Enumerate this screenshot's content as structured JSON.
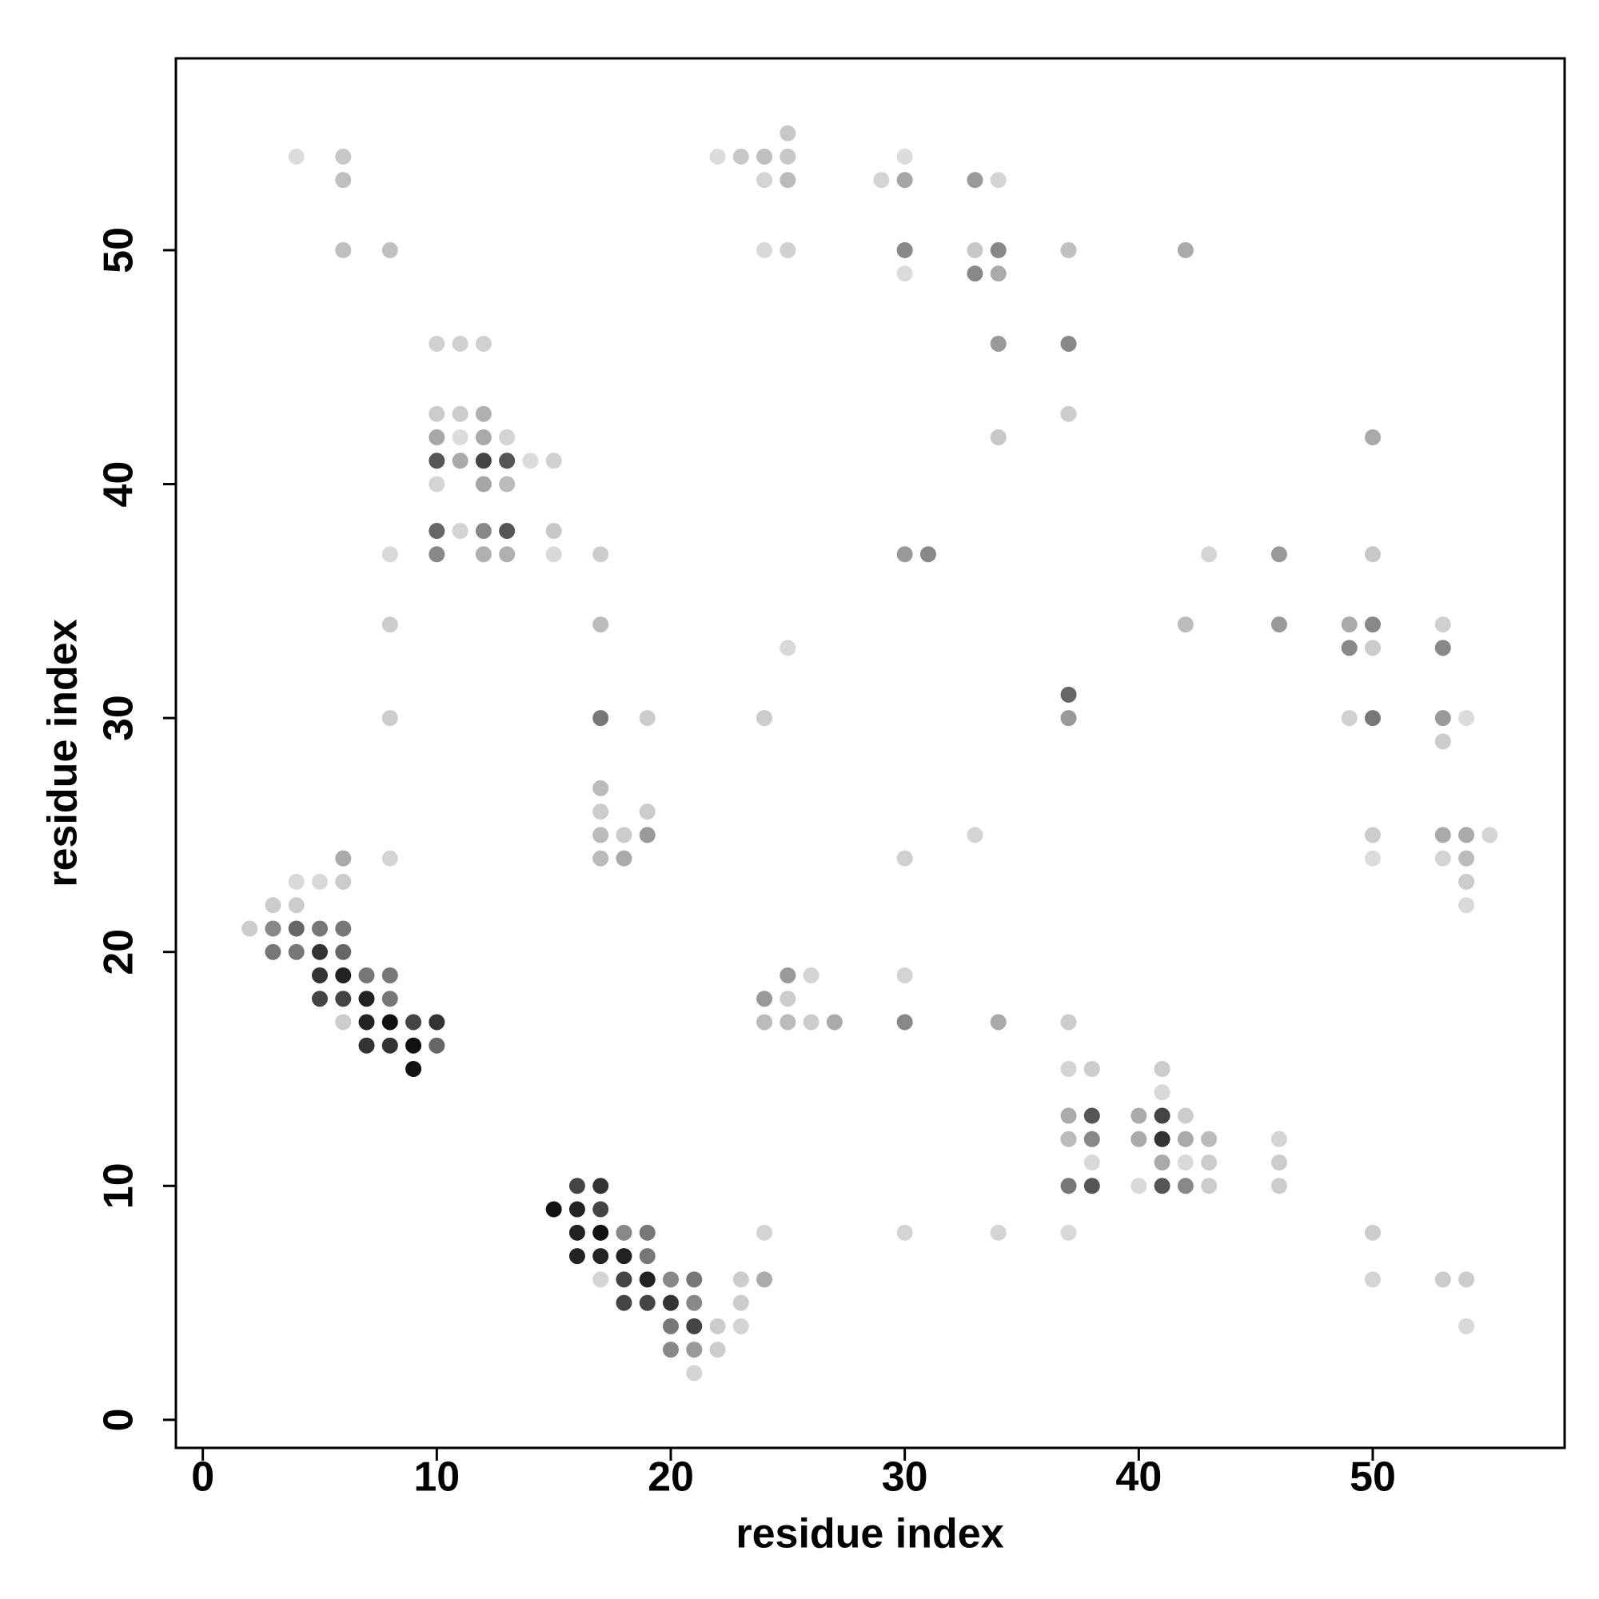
{
  "chart_data": {
    "type": "scatter",
    "x_label": "residue index",
    "y_label": "residue index",
    "xlim": [
      -1.15,
      58.2
    ],
    "ylim": [
      -1.2,
      58.2
    ],
    "xticks": [
      0,
      10,
      20,
      30,
      40,
      50
    ],
    "yticks": [
      0,
      10,
      20,
      30,
      40,
      50
    ],
    "x": [
      25,
      4,
      6,
      22,
      23,
      24,
      25,
      30,
      6,
      24,
      25,
      29,
      30,
      33,
      34,
      6,
      8,
      24,
      25,
      30,
      33,
      34,
      37,
      42,
      30,
      33,
      34,
      10,
      11,
      12,
      34,
      37,
      10,
      11,
      12,
      37,
      10,
      11,
      12,
      13,
      34,
      50,
      10,
      11,
      12,
      13,
      14,
      15,
      10,
      12,
      13,
      10,
      11,
      12,
      13,
      15,
      8,
      10,
      12,
      13,
      15,
      17,
      30,
      31,
      43,
      46,
      50,
      8,
      17,
      42,
      46,
      49,
      50,
      53,
      25,
      49,
      50,
      53,
      37,
      8,
      17,
      19,
      24,
      37,
      49,
      50,
      53,
      54,
      53,
      17,
      17,
      19,
      17,
      18,
      19,
      33,
      50,
      53,
      54,
      55,
      6,
      8,
      17,
      18,
      30,
      50,
      53,
      54,
      4,
      5,
      6,
      54,
      3,
      4,
      54,
      2,
      3,
      4,
      5,
      6,
      3,
      4,
      5,
      6,
      5,
      6,
      7,
      8,
      25,
      26,
      30,
      5,
      6,
      7,
      8,
      24,
      25,
      6,
      7,
      8,
      9,
      10,
      24,
      25,
      26,
      27,
      30,
      34,
      37,
      7,
      8,
      9,
      10,
      9,
      37,
      38,
      41,
      41,
      37,
      38,
      40,
      41,
      42,
      37,
      38,
      40,
      41,
      42,
      43,
      46,
      38,
      41,
      42,
      43,
      46,
      16,
      17,
      37,
      38,
      40,
      41,
      42,
      43,
      46,
      15,
      16,
      17,
      16,
      17,
      18,
      19,
      24,
      30,
      34,
      37,
      50,
      16,
      17,
      18,
      19,
      17,
      18,
      19,
      20,
      21,
      23,
      24,
      50,
      53,
      54,
      18,
      19,
      20,
      21,
      23,
      20,
      21,
      22,
      23,
      54,
      20,
      21,
      22,
      21
    ],
    "y": [
      55,
      54,
      54,
      54,
      54,
      54,
      54,
      54,
      53,
      53,
      53,
      53,
      53,
      53,
      53,
      50,
      50,
      50,
      50,
      50,
      50,
      50,
      50,
      50,
      49,
      49,
      49,
      46,
      46,
      46,
      46,
      46,
      43,
      43,
      43,
      43,
      42,
      42,
      42,
      42,
      42,
      42,
      41,
      41,
      41,
      41,
      41,
      41,
      40,
      40,
      40,
      38,
      38,
      38,
      38,
      38,
      37,
      37,
      37,
      37,
      37,
      37,
      37,
      37,
      37,
      37,
      37,
      34,
      34,
      34,
      34,
      34,
      34,
      34,
      33,
      33,
      33,
      33,
      31,
      30,
      30,
      30,
      30,
      30,
      30,
      30,
      30,
      30,
      29,
      27,
      26,
      26,
      25,
      25,
      25,
      25,
      25,
      25,
      25,
      25,
      24,
      24,
      24,
      24,
      24,
      24,
      24,
      24,
      23,
      23,
      23,
      23,
      22,
      22,
      22,
      21,
      21,
      21,
      21,
      21,
      20,
      20,
      20,
      20,
      19,
      19,
      19,
      19,
      19,
      19,
      19,
      18,
      18,
      18,
      18,
      18,
      18,
      17,
      17,
      17,
      17,
      17,
      17,
      17,
      17,
      17,
      17,
      17,
      17,
      16,
      16,
      16,
      16,
      15,
      15,
      15,
      15,
      14,
      13,
      13,
      13,
      13,
      13,
      12,
      12,
      12,
      12,
      12,
      12,
      12,
      11,
      11,
      11,
      11,
      11,
      10,
      10,
      10,
      10,
      10,
      10,
      10,
      10,
      10,
      9,
      9,
      9,
      8,
      8,
      8,
      8,
      8,
      8,
      8,
      8,
      8,
      7,
      7,
      7,
      7,
      6,
      6,
      6,
      6,
      6,
      6,
      6,
      6,
      6,
      6,
      5,
      5,
      5,
      5,
      5,
      4,
      4,
      4,
      4,
      4,
      3,
      3,
      3,
      2
    ],
    "colors": [
      "#c8c8c8",
      "#dcdcdc",
      "#c8c8c8",
      "#dcdcdc",
      "#c8c8c8",
      "#bfbfbf",
      "#c8c8c8",
      "#dcdcdc",
      "#bfbfbf",
      "#d4d4d4",
      "#bbbbbb",
      "#d4d4d4",
      "#a6a6a6",
      "#999999",
      "#d4d4d4",
      "#bfbfbf",
      "#c0c0c0",
      "#d9d9d9",
      "#d0d0d0",
      "#888888",
      "#c8c8c8",
      "#888888",
      "#c0c0c0",
      "#aaaaaa",
      "#dcdcdc",
      "#888888",
      "#aaaaaa",
      "#d0d0d0",
      "#d0d0d0",
      "#d0d0d0",
      "#999999",
      "#888888",
      "#cccccc",
      "#cccccc",
      "#b0b0b0",
      "#cccccc",
      "#a8a8a8",
      "#dcdcdc",
      "#aaaaaa",
      "#d4d4d4",
      "#c8c8c8",
      "#aaaaaa",
      "#555555",
      "#aaaaaa",
      "#444444",
      "#555555",
      "#dcdcdc",
      "#d0d0d0",
      "#d4d4d4",
      "#a6a6a6",
      "#bbbbbb",
      "#666666",
      "#d4d4d4",
      "#888888",
      "#555555",
      "#c8c8c8",
      "#d9d9d9",
      "#888888",
      "#b0b0b0",
      "#b0b0b0",
      "#d9d9d9",
      "#cccccc",
      "#999999",
      "#888888",
      "#d4d4d4",
      "#999999",
      "#c8c8c8",
      "#cccccc",
      "#bbbbbb",
      "#bbbbbb",
      "#999999",
      "#aaaaaa",
      "#888888",
      "#d0d0d0",
      "#d9d9d9",
      "#888888",
      "#cccccc",
      "#888888",
      "#666666",
      "#cccccc",
      "#777777",
      "#cccccc",
      "#cccccc",
      "#999999",
      "#d0d0d0",
      "#777777",
      "#999999",
      "#dcdcdc",
      "#cccccc",
      "#bbbbbb",
      "#cccccc",
      "#cccccc",
      "#bbbbbb",
      "#cccccc",
      "#999999",
      "#d4d4d4",
      "#cccccc",
      "#aaaaaa",
      "#aaaaaa",
      "#d4d4d4",
      "#aaaaaa",
      "#d4d4d4",
      "#bbbbbb",
      "#aaaaaa",
      "#d0d0d0",
      "#dcdcdc",
      "#d4d4d4",
      "#bbbbbb",
      "#d9d9d9",
      "#d9d9d9",
      "#cccccc",
      "#cccccc",
      "#cccccc",
      "#cccccc",
      "#d9d9d9",
      "#cccccc",
      "#888888",
      "#666666",
      "#777777",
      "#777777",
      "#777777",
      "#777777",
      "#333333",
      "#666666",
      "#333333",
      "#222222",
      "#777777",
      "#777777",
      "#999999",
      "#d4d4d4",
      "#d4d4d4",
      "#444444",
      "#444444",
      "#222222",
      "#777777",
      "#999999",
      "#cccccc",
      "#cccccc",
      "#222222",
      "#111111",
      "#444444",
      "#333333",
      "#bbbbbb",
      "#bbbbbb",
      "#cccccc",
      "#aaaaaa",
      "#888888",
      "#aaaaaa",
      "#cccccc",
      "#333333",
      "#333333",
      "#111111",
      "#666666",
      "#111111",
      "#d4d4d4",
      "#cccccc",
      "#cccccc",
      "#d9d9d9",
      "#aaaaaa",
      "#555555",
      "#aaaaaa",
      "#444444",
      "#cccccc",
      "#bbbbbb",
      "#888888",
      "#aaaaaa",
      "#333333",
      "#aaaaaa",
      "#bbbbbb",
      "#d4d4d4",
      "#d9d9d9",
      "#aaaaaa",
      "#d9d9d9",
      "#cccccc",
      "#cccccc",
      "#444444",
      "#333333",
      "#777777",
      "#555555",
      "#d9d9d9",
      "#555555",
      "#888888",
      "#cccccc",
      "#cccccc",
      "#111111",
      "#222222",
      "#444444",
      "#222222",
      "#111111",
      "#888888",
      "#777777",
      "#d4d4d4",
      "#d4d4d4",
      "#d4d4d4",
      "#d9d9d9",
      "#cccccc",
      "#222222",
      "#222222",
      "#222222",
      "#777777",
      "#d4d4d4",
      "#444444",
      "#222222",
      "#888888",
      "#777777",
      "#cccccc",
      "#aaaaaa",
      "#d4d4d4",
      "#cccccc",
      "#cccccc",
      "#444444",
      "#444444",
      "#333333",
      "#888888",
      "#cccccc",
      "#777777",
      "#444444",
      "#cccccc",
      "#d4d4d4",
      "#d9d9d9",
      "#888888",
      "#999999",
      "#cccccc",
      "#d4d4d4"
    ]
  }
}
